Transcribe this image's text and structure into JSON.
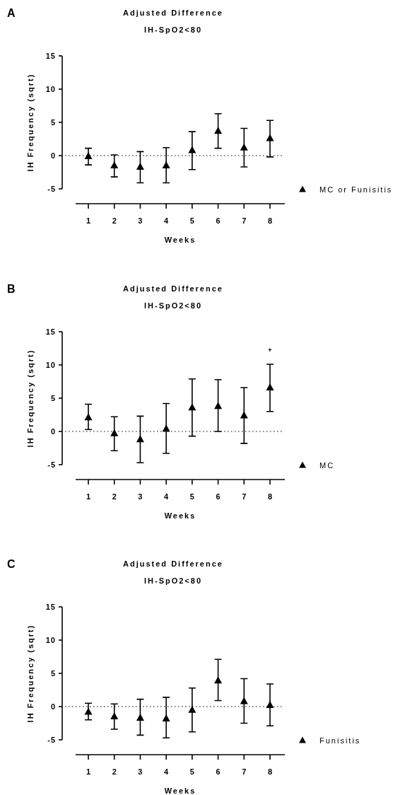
{
  "chart_data": [
    {
      "type": "scatter",
      "title": "Adjusted Difference",
      "subtitle": "IH-SpO2<80",
      "xlabel": "Weeks",
      "ylabel": "IH Frequency (sqrt)",
      "categories": [
        "1",
        "2",
        "3",
        "4",
        "5",
        "6",
        "7",
        "8"
      ],
      "series": [
        {
          "name": "MC or Funisitis",
          "color": "#000000",
          "values": [
            -0.1,
            -1.5,
            -1.7,
            -1.5,
            0.8,
            3.7,
            1.2,
            2.6
          ],
          "errors": [
            [
              -1.4,
              1.1
            ],
            [
              -3.2,
              0.1
            ],
            [
              -4.1,
              0.6
            ],
            [
              -4.1,
              1.2
            ],
            [
              -2.1,
              3.6
            ],
            [
              1.1,
              6.3
            ],
            [
              -1.7,
              4.1
            ],
            [
              -0.2,
              5.3
            ]
          ]
        }
      ],
      "ylim": [
        -5,
        15
      ],
      "yticks": [
        -5,
        0,
        5,
        10,
        15
      ],
      "marker": "triangle",
      "legend": "bottom right",
      "grid": false,
      "ref_lines": [
        {
          "axis": "y",
          "value": 0,
          "line_style": "dotted",
          "color": "#000000"
        }
      ],
      "annotations": [
        "A"
      ]
    },
    {
      "type": "scatter",
      "title": "Adjusted Difference",
      "subtitle": "IH-SpO2<80",
      "xlabel": "Weeks",
      "ylabel": "IH Frequency (sqrt)",
      "categories": [
        "1",
        "2",
        "3",
        "4",
        "5",
        "6",
        "7",
        "8"
      ],
      "series": [
        {
          "name": "MC",
          "color": "#000000",
          "values": [
            2.1,
            -0.3,
            -1.2,
            0.4,
            3.6,
            3.8,
            2.4,
            6.6
          ],
          "errors": [
            [
              0.3,
              4.1
            ],
            [
              -2.9,
              2.2
            ],
            [
              -4.7,
              2.3
            ],
            [
              -3.3,
              4.2
            ],
            [
              -0.7,
              7.9
            ],
            [
              0.0,
              7.8
            ],
            [
              -1.8,
              6.6
            ],
            [
              3.0,
              10.1
            ]
          ]
        }
      ],
      "ylim": [
        -5,
        15
      ],
      "yticks": [
        -5,
        0,
        5,
        10,
        15
      ],
      "marker": "triangle",
      "legend": "bottom right",
      "grid": false,
      "ref_lines": [
        {
          "axis": "y",
          "value": 0,
          "line_style": "dotted",
          "color": "#000000"
        }
      ],
      "annotations": [
        "B",
        "+"
      ]
    },
    {
      "type": "scatter",
      "title": "Adjusted Difference",
      "subtitle": "IH-SpO2<80",
      "xlabel": "Weeks",
      "ylabel": "IH Frequency (sqrt)",
      "categories": [
        "1",
        "2",
        "3",
        "4",
        "5",
        "6",
        "7",
        "8"
      ],
      "series": [
        {
          "name": "Funisitis",
          "color": "#000000",
          "values": [
            -0.8,
            -1.5,
            -1.7,
            -1.8,
            -0.5,
            3.9,
            0.8,
            0.2
          ],
          "errors": [
            [
              -2.0,
              0.5
            ],
            [
              -3.4,
              0.4
            ],
            [
              -4.3,
              1.1
            ],
            [
              -4.7,
              1.4
            ],
            [
              -3.8,
              2.8
            ],
            [
              0.9,
              7.1
            ],
            [
              -2.5,
              4.2
            ],
            [
              -2.9,
              3.4
            ]
          ]
        }
      ],
      "ylim": [
        -5,
        15
      ],
      "yticks": [
        -5,
        0,
        5,
        10,
        15
      ],
      "marker": "triangle",
      "legend": "bottom right",
      "grid": false,
      "ref_lines": [
        {
          "axis": "y",
          "value": 0,
          "line_style": "dotted",
          "color": "#000000"
        }
      ],
      "annotations": [
        "C"
      ]
    }
  ]
}
